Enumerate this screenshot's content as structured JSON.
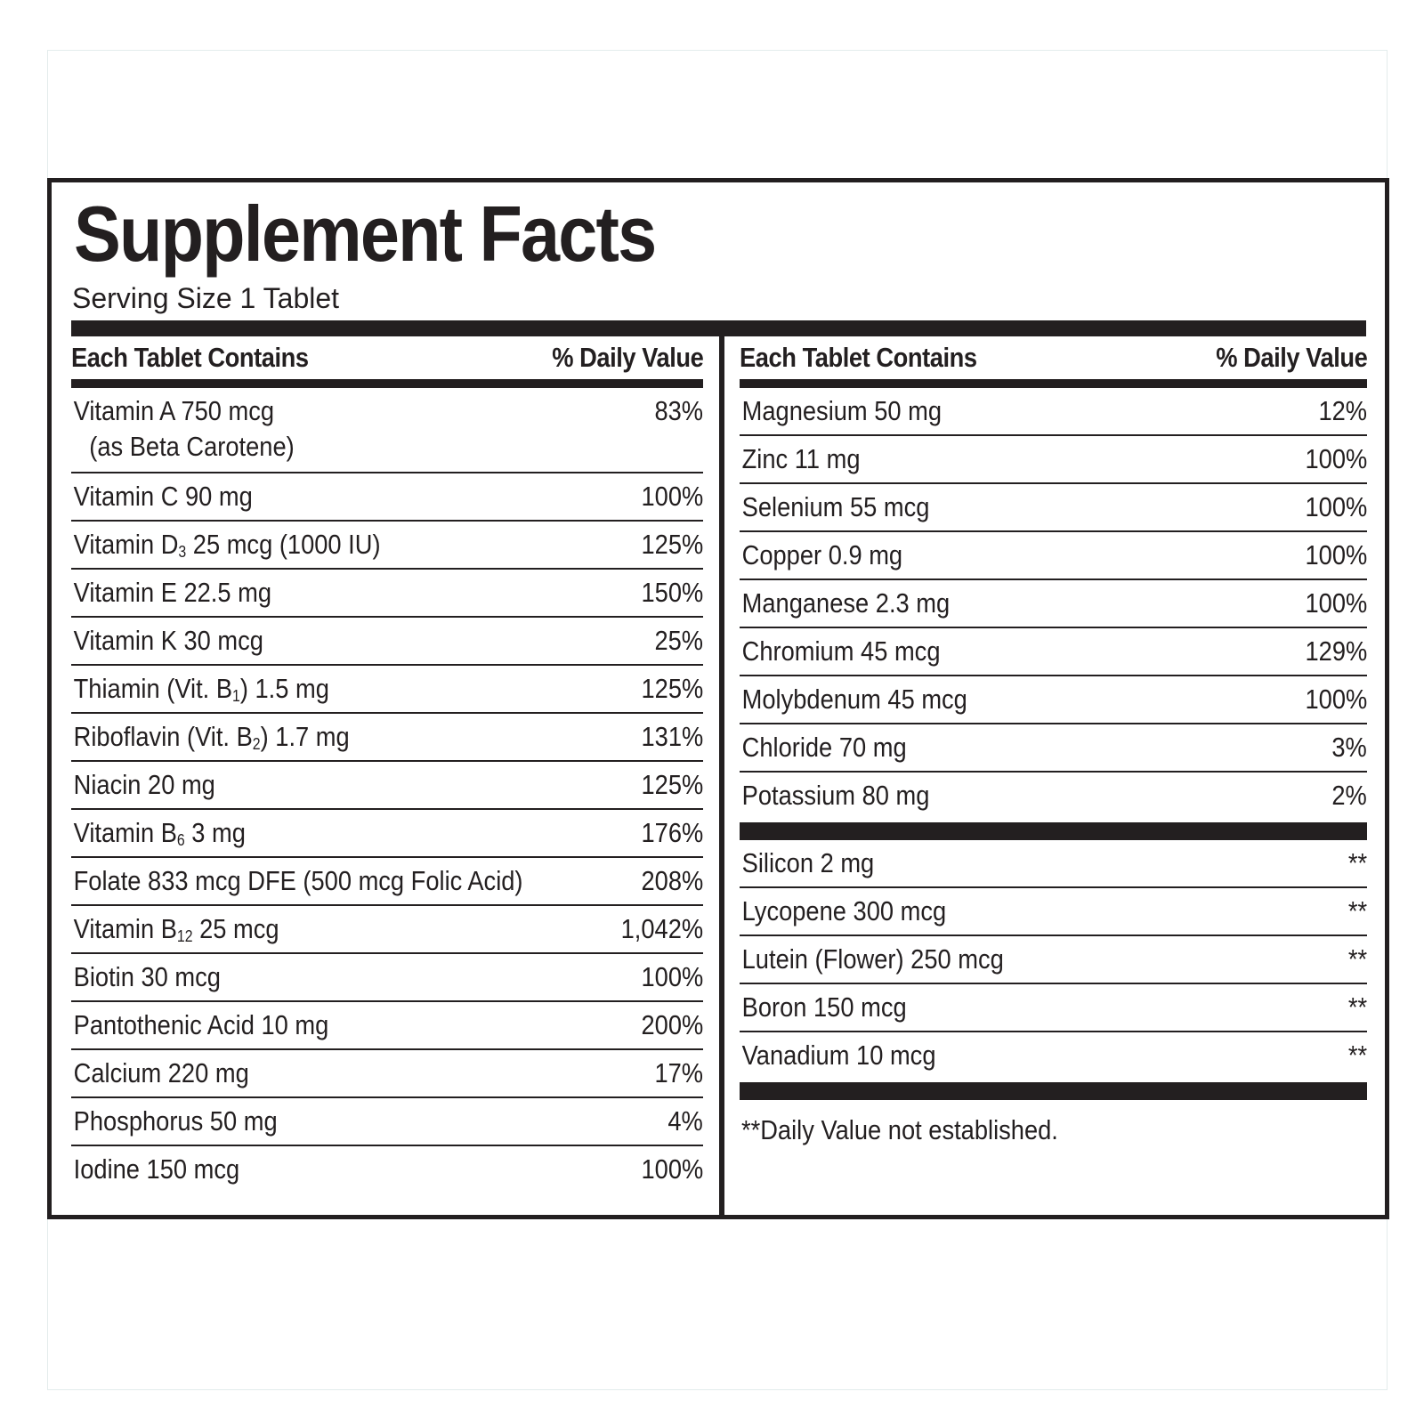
{
  "title": "Supplement Facts",
  "serving_size": "Serving Size 1 Tablet",
  "header": {
    "contains": "Each Tablet Contains",
    "daily_value": "% Daily Value"
  },
  "left_rows": [
    {
      "name": "Vitamin A 750 mcg",
      "sub": "(as Beta Carotene)",
      "dv": "83%"
    },
    {
      "name": "Vitamin C 90 mg",
      "dv": "100%"
    },
    {
      "name_pre": "Vitamin D",
      "subscript": "3",
      "name_post": " 25 mcg (1000 IU)",
      "dv": "125%"
    },
    {
      "name": "Vitamin E 22.5 mg",
      "dv": "150%"
    },
    {
      "name": "Vitamin K 30 mcg",
      "dv": "25%"
    },
    {
      "name_pre": "Thiamin (Vit. B",
      "subscript": "1",
      "name_post": ") 1.5 mg",
      "dv": "125%"
    },
    {
      "name_pre": "Riboflavin (Vit. B",
      "subscript": "2",
      "name_post": ") 1.7 mg",
      "dv": "131%"
    },
    {
      "name": "Niacin 20 mg",
      "dv": "125%"
    },
    {
      "name_pre": "Vitamin B",
      "subscript": "6",
      "name_post": " 3 mg",
      "dv": "176%"
    },
    {
      "name": "Folate 833 mcg DFE (500 mcg Folic Acid)",
      "dv": "208%"
    },
    {
      "name_pre": "Vitamin B",
      "subscript": "12",
      "name_post": " 25 mcg",
      "dv": "1,042%"
    },
    {
      "name": "Biotin 30 mcg",
      "dv": "100%"
    },
    {
      "name": "Pantothenic Acid 10 mg",
      "dv": "200%"
    },
    {
      "name": "Calcium 220 mg",
      "dv": "17%"
    },
    {
      "name": "Phosphorus 50 mg",
      "dv": "4%"
    },
    {
      "name": "Iodine 150 mcg",
      "dv": "100%"
    }
  ],
  "right_rows": [
    {
      "name": "Magnesium 50 mg",
      "dv": "12%"
    },
    {
      "name": "Zinc 11 mg",
      "dv": "100%"
    },
    {
      "name": "Selenium 55 mcg",
      "dv": "100%"
    },
    {
      "name": "Copper 0.9 mg",
      "dv": "100%"
    },
    {
      "name": "Manganese 2.3 mg",
      "dv": "100%"
    },
    {
      "name": "Chromium 45 mcg",
      "dv": "129%"
    },
    {
      "name": "Molybdenum  45 mcg",
      "dv": "100%"
    },
    {
      "name": "Chloride  70 mg",
      "dv": "3%"
    },
    {
      "name": "Potassium  80 mg",
      "dv": "2%"
    }
  ],
  "other_rows": [
    {
      "name": "Silicon  2 mg",
      "dv": "**"
    },
    {
      "name": "Lycopene  300 mcg",
      "dv": "**"
    },
    {
      "name": "Lutein (Flower)  250 mcg",
      "dv": "**"
    },
    {
      "name": "Boron  150 mcg",
      "dv": "**"
    },
    {
      "name": "Vanadium  10 mcg",
      "dv": "**"
    }
  ],
  "footnote": "**Daily Value not established."
}
